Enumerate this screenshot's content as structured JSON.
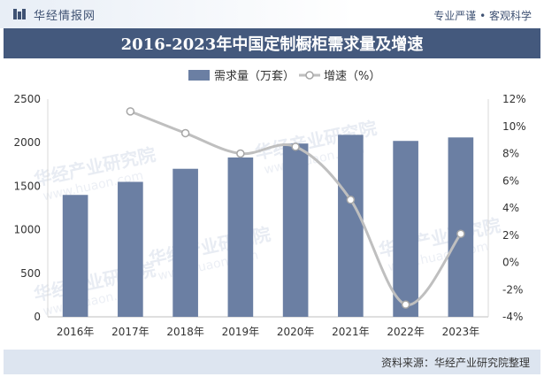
{
  "header": {
    "brand_name": "华经情报网",
    "tagline": "专业严谨 • 客观科学",
    "logo_icon": "bar-logo-icon"
  },
  "title": "2016-2023年中国定制橱柜需求量及增速",
  "watermark": {
    "text_cn": "华经产业研究院",
    "text_url": "www.huaon.com"
  },
  "footer": {
    "source": "资料来源：华经产业研究院整理"
  },
  "colors": {
    "bar": "#6b7fa3",
    "line": "#bfbfbf",
    "title_bg": "#44597d",
    "footer_bg": "#dde5f0"
  },
  "chart_data": {
    "type": "bar+line",
    "categories": [
      "2016年",
      "2017年",
      "2018年",
      "2019年",
      "2020年",
      "2021年",
      "2022年",
      "2023年"
    ],
    "series": [
      {
        "name": "需求量（万套）",
        "type": "bar",
        "axis": "left",
        "values": [
          1400,
          1550,
          1700,
          1830,
          1990,
          2090,
          2020,
          2060
        ]
      },
      {
        "name": "增速（%）",
        "type": "line",
        "axis": "right",
        "values": [
          null,
          11.1,
          9.5,
          8.0,
          8.5,
          4.6,
          -3.1,
          2.1
        ]
      }
    ],
    "left_axis": {
      "min": 0,
      "max": 2500,
      "ticks": [
        0,
        500,
        1000,
        1500,
        2000,
        2500
      ]
    },
    "right_axis": {
      "min": -4,
      "max": 12,
      "ticks": [
        -4,
        -2,
        0,
        2,
        4,
        6,
        8,
        10,
        12
      ],
      "tick_labels": [
        "-4%",
        "-2%",
        "0%",
        "2%",
        "4%",
        "6%",
        "8%",
        "10%",
        "12%"
      ]
    },
    "legend_position": "top-center",
    "grid": false
  }
}
